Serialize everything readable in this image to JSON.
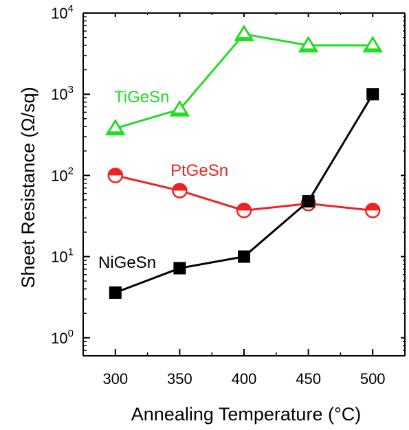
{
  "chart_data": {
    "type": "line",
    "title": "",
    "xlabel": "Annealing Temperature (°C)",
    "ylabel": "Sheet Resistance (Ω/sq)",
    "yscale": "log",
    "xlim": [
      275,
      525
    ],
    "ylim": [
      0.6,
      10000
    ],
    "x": [
      300,
      350,
      400,
      450,
      500
    ],
    "x_ticks": [
      "300",
      "350",
      "400",
      "450",
      "500"
    ],
    "y_ticks": [
      {
        "value": 1,
        "base": "10",
        "exp": "0"
      },
      {
        "value": 10,
        "base": "10",
        "exp": "1"
      },
      {
        "value": 100,
        "base": "10",
        "exp": "2"
      },
      {
        "value": 1000,
        "base": "10",
        "exp": "3"
      },
      {
        "value": 10000,
        "base": "10",
        "exp": "4"
      }
    ],
    "grid": false,
    "legend": "none",
    "series": [
      {
        "name": "TiGeSn",
        "values": [
          380,
          650,
          5500,
          4000,
          4000
        ],
        "color": "#22dd22",
        "marker": "triangle-open"
      },
      {
        "name": "PtGeSn",
        "values": [
          100,
          65,
          37,
          45,
          37
        ],
        "color": "#ee2222",
        "marker": "circle-half"
      },
      {
        "name": "NiGeSn",
        "values": [
          3.6,
          7.2,
          10,
          48,
          1000
        ],
        "color": "#000000",
        "marker": "square-filled"
      }
    ]
  }
}
